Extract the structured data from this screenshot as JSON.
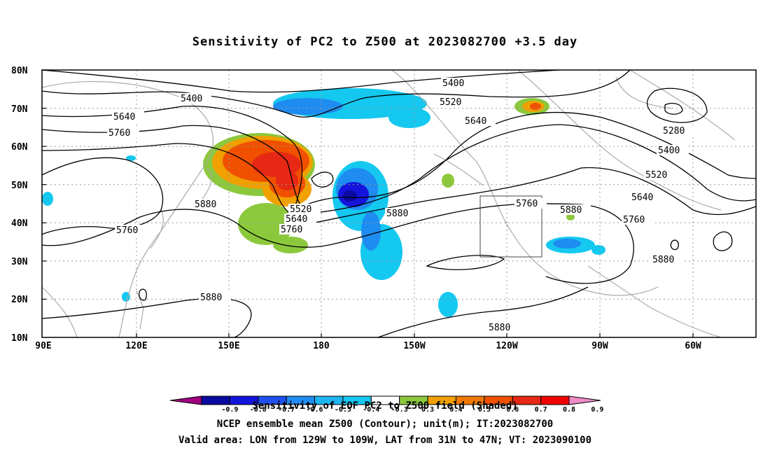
{
  "title": "Sensitivity of PC2 to Z500 at 2023082700 +3.5 day",
  "axes": {
    "lat_labels": [
      "80N",
      "70N",
      "60N",
      "50N",
      "40N",
      "30N",
      "20N",
      "10N"
    ],
    "lon_labels": [
      "90E",
      "120E",
      "150E",
      "180",
      "150W",
      "120W",
      "90W",
      "60W"
    ]
  },
  "contour_labels": [
    {
      "text": "5400",
      "id": "c1"
    },
    {
      "text": "5400",
      "id": "c2"
    },
    {
      "text": "5520",
      "id": "c3"
    },
    {
      "text": "5640",
      "id": "c4"
    },
    {
      "text": "5760",
      "id": "c5"
    },
    {
      "text": "5640",
      "id": "c6"
    },
    {
      "text": "5280",
      "id": "c7"
    },
    {
      "text": "5400",
      "id": "c8"
    },
    {
      "text": "5520",
      "id": "c9"
    },
    {
      "text": "5640",
      "id": "c10"
    },
    {
      "text": "5760",
      "id": "c11"
    },
    {
      "text": "5880",
      "id": "c12"
    },
    {
      "text": "5760",
      "id": "c13"
    },
    {
      "text": "5520",
      "id": "c14"
    },
    {
      "text": "5640",
      "id": "c15"
    },
    {
      "text": "5760",
      "id": "c16"
    },
    {
      "text": "5880",
      "id": "c17"
    },
    {
      "text": "5880",
      "id": "c18"
    },
    {
      "text": "5880",
      "id": "c19"
    },
    {
      "text": "5880",
      "id": "c20"
    },
    {
      "text": "5880",
      "id": "c21"
    }
  ],
  "colorbar": {
    "labels": [
      "-0.9",
      "-0.8",
      "-0.7",
      "-0.6",
      "-0.5",
      "-0.4",
      "-0.3",
      "0.3",
      "0.4",
      "0.5",
      "0.6",
      "0.7",
      "0.8",
      "0.9"
    ],
    "colors": [
      "#a0007f",
      "#0a0aa0",
      "#1414dc",
      "#1e50f0",
      "#1e8cf0",
      "#1eb4f0",
      "#14c8f0",
      "#ffffff",
      "#8cc83c",
      "#f0a000",
      "#f07800",
      "#f05000",
      "#e62814",
      "#f00000",
      "#f08cc8"
    ]
  },
  "captions": {
    "line1": "Sensitivity of EOF PC2 to Z500 field (Shaded)",
    "line2": "NCEP ensemble mean Z500 (Contour); unit(m); IT:2023082700",
    "line3": "Valid area: LON from 129W to 109W, LAT from 31N to 47N; VT: 2023090100"
  }
}
